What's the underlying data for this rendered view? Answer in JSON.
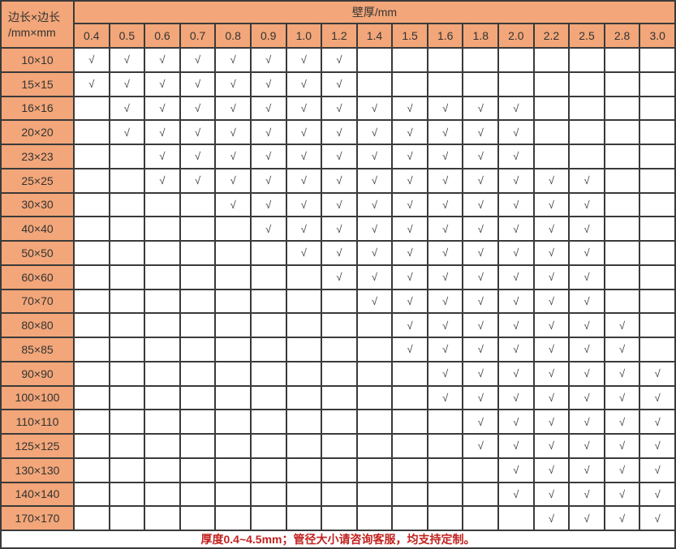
{
  "colors": {
    "header_bg": "#F2A679",
    "grid_line": "#3A3A3A",
    "cell_bg": "#FFFFFF",
    "header_text": "#333333",
    "check_mark": "#3D3D3D",
    "footer_text": "#C2211F"
  },
  "table": {
    "corner_label_line1": "边长×边长",
    "corner_label_line2": "/mm×mm",
    "thickness_header": "壁厚/mm",
    "check_symbol": "√",
    "footer_note": "厚度0.4~4.5mm；管径大小请咨询客服，均支持定制。"
  },
  "chart_data": {
    "type": "table",
    "row_header": "边长×边长/mm×mm",
    "column_group_header": "壁厚/mm",
    "columns": [
      "0.4",
      "0.5",
      "0.6",
      "0.7",
      "0.8",
      "0.9",
      "1.0",
      "1.2",
      "1.4",
      "1.5",
      "1.6",
      "1.8",
      "2.0",
      "2.2",
      "2.5",
      "2.8",
      "3.0"
    ],
    "check_symbol": "√",
    "rows": [
      {
        "size": "10×10",
        "available_thicknesses": [
          "0.4",
          "0.5",
          "0.6",
          "0.7",
          "0.8",
          "0.9",
          "1.0",
          "1.2"
        ]
      },
      {
        "size": "15×15",
        "available_thicknesses": [
          "0.4",
          "0.5",
          "0.6",
          "0.7",
          "0.8",
          "0.9",
          "1.0",
          "1.2"
        ]
      },
      {
        "size": "16×16",
        "available_thicknesses": [
          "0.5",
          "0.6",
          "0.7",
          "0.8",
          "0.9",
          "1.0",
          "1.2",
          "1.4",
          "1.5",
          "1.6",
          "1.8",
          "2.0"
        ]
      },
      {
        "size": "20×20",
        "available_thicknesses": [
          "0.5",
          "0.6",
          "0.7",
          "0.8",
          "0.9",
          "1.0",
          "1.2",
          "1.4",
          "1.5",
          "1.6",
          "1.8",
          "2.0"
        ]
      },
      {
        "size": "23×23",
        "available_thicknesses": [
          "0.6",
          "0.7",
          "0.8",
          "0.9",
          "1.0",
          "1.2",
          "1.4",
          "1.5",
          "1.6",
          "1.8",
          "2.0"
        ]
      },
      {
        "size": "25×25",
        "available_thicknesses": [
          "0.6",
          "0.7",
          "0.8",
          "0.9",
          "1.0",
          "1.2",
          "1.4",
          "1.5",
          "1.6",
          "1.8",
          "2.0",
          "2.2",
          "2.5"
        ]
      },
      {
        "size": "30×30",
        "available_thicknesses": [
          "0.8",
          "0.9",
          "1.0",
          "1.2",
          "1.4",
          "1.5",
          "1.6",
          "1.8",
          "2.0",
          "2.2",
          "2.5"
        ]
      },
      {
        "size": "40×40",
        "available_thicknesses": [
          "0.9",
          "1.0",
          "1.2",
          "1.4",
          "1.5",
          "1.6",
          "1.8",
          "2.0",
          "2.2",
          "2.5"
        ]
      },
      {
        "size": "50×50",
        "available_thicknesses": [
          "1.0",
          "1.2",
          "1.4",
          "1.5",
          "1.6",
          "1.8",
          "2.0",
          "2.2",
          "2.5"
        ]
      },
      {
        "size": "60×60",
        "available_thicknesses": [
          "1.2",
          "1.4",
          "1.5",
          "1.6",
          "1.8",
          "2.0",
          "2.2",
          "2.5"
        ]
      },
      {
        "size": "70×70",
        "available_thicknesses": [
          "1.4",
          "1.5",
          "1.6",
          "1.8",
          "2.0",
          "2.2",
          "2.5"
        ]
      },
      {
        "size": "80×80",
        "available_thicknesses": [
          "1.5",
          "1.6",
          "1.8",
          "2.0",
          "2.2",
          "2.5",
          "2.8"
        ]
      },
      {
        "size": "85×85",
        "available_thicknesses": [
          "1.5",
          "1.6",
          "1.8",
          "2.0",
          "2.2",
          "2.5",
          "2.8"
        ]
      },
      {
        "size": "90×90",
        "available_thicknesses": [
          "1.6",
          "1.8",
          "2.0",
          "2.2",
          "2.5",
          "2.8",
          "3.0"
        ]
      },
      {
        "size": "100×100",
        "available_thicknesses": [
          "1.6",
          "1.8",
          "2.0",
          "2.2",
          "2.5",
          "2.8",
          "3.0"
        ]
      },
      {
        "size": "110×110",
        "available_thicknesses": [
          "1.8",
          "2.0",
          "2.2",
          "2.5",
          "2.8",
          "3.0"
        ]
      },
      {
        "size": "125×125",
        "available_thicknesses": [
          "1.8",
          "2.0",
          "2.2",
          "2.5",
          "2.8",
          "3.0"
        ]
      },
      {
        "size": "130×130",
        "available_thicknesses": [
          "2.0",
          "2.2",
          "2.5",
          "2.8",
          "3.0"
        ]
      },
      {
        "size": "140×140",
        "available_thicknesses": [
          "2.0",
          "2.2",
          "2.5",
          "2.8",
          "3.0"
        ]
      },
      {
        "size": "170×170",
        "available_thicknesses": [
          "2.2",
          "2.5",
          "2.8",
          "3.0"
        ]
      }
    ],
    "footnote": "厚度0.4~4.5mm；管径大小请咨询客服，均支持定制。"
  }
}
